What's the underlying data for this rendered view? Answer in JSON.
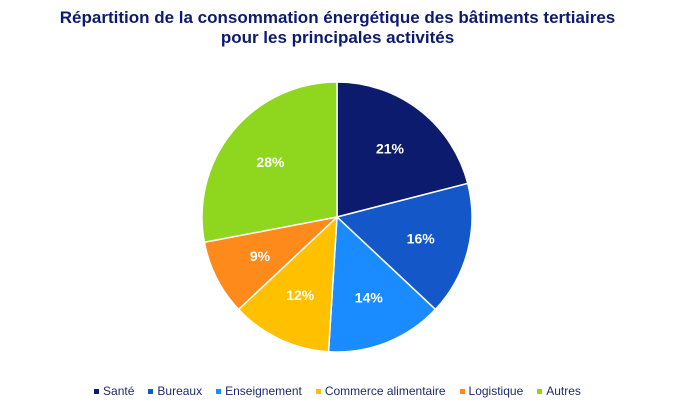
{
  "chart_data": {
    "type": "pie",
    "title_lines": [
      "Répartition de la consommation énergétique des bâtiments tertiaires",
      "pour les principales activités"
    ],
    "categories": [
      "Santé",
      "Bureaux",
      "Enseignement",
      "Commerce alimentaire",
      "Logistique",
      "Autres"
    ],
    "values": [
      21,
      16,
      14,
      12,
      9,
      28
    ],
    "data_labels": [
      "21%",
      "16%",
      "14%",
      "12%",
      "9%",
      "28%"
    ],
    "colors": [
      "#0d1b6e",
      "#1357c9",
      "#1a8cff",
      "#ffc000",
      "#ff8a1c",
      "#8fd61e"
    ],
    "start_angle": "top",
    "direction": "clockwise",
    "legend_position": "bottom"
  }
}
